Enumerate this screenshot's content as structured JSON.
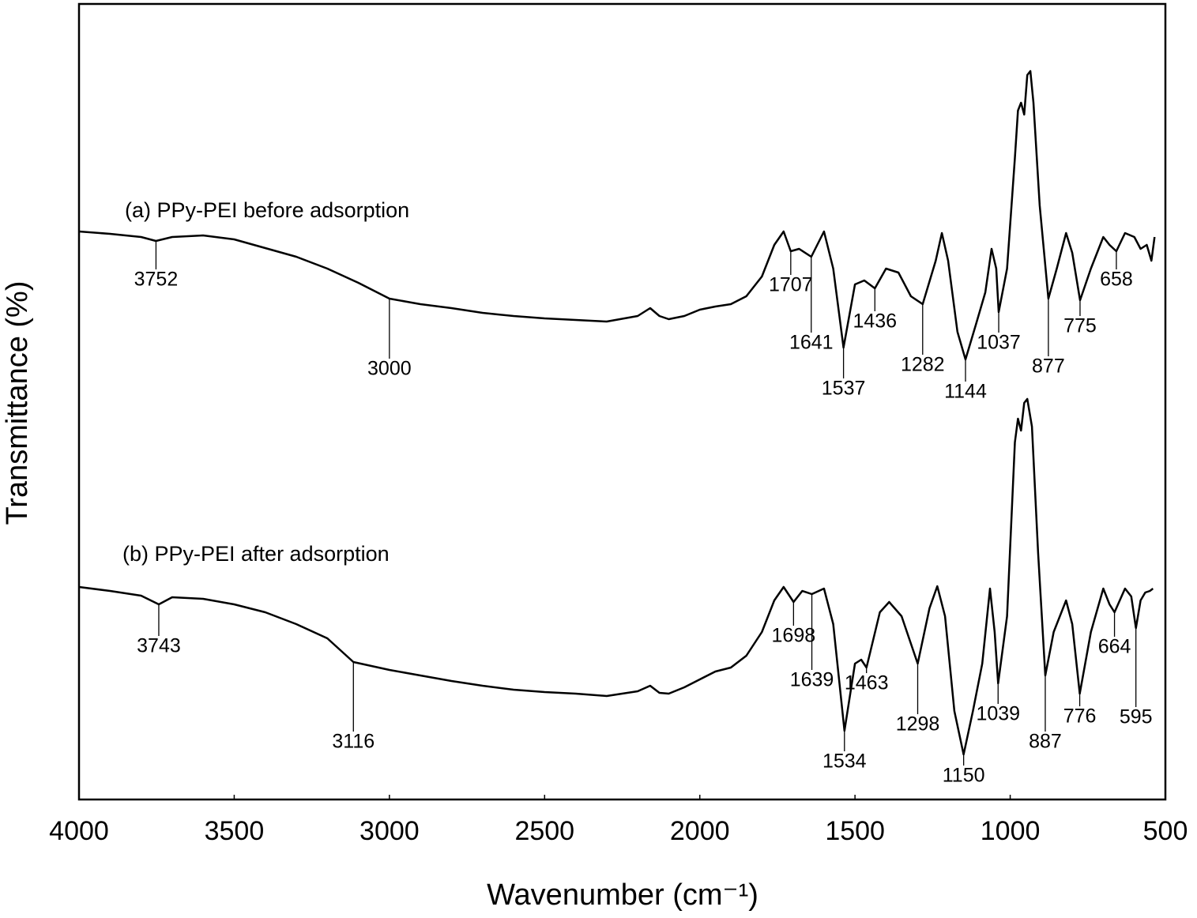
{
  "chart_data": {
    "type": "line",
    "x_label": "Wavenumber (cm⁻¹)",
    "y_label": "Transmittance (%)",
    "xlim": [
      4000,
      500
    ],
    "xticks": [
      4000,
      3500,
      3000,
      2500,
      2000,
      1500,
      1000,
      500
    ],
    "ylim": [
      0,
      1007
    ],
    "color": "#000000",
    "series": [
      {
        "name": "(a) PPy-PEI before adsorption",
        "x": [
          4000,
          3900,
          3800,
          3752,
          3700,
          3600,
          3500,
          3400,
          3300,
          3200,
          3100,
          3000,
          2900,
          2800,
          2700,
          2600,
          2500,
          2400,
          2300,
          2200,
          2160,
          2130,
          2100,
          2050,
          2000,
          1950,
          1900,
          1850,
          1800,
          1760,
          1730,
          1707,
          1680,
          1641,
          1600,
          1570,
          1537,
          1500,
          1470,
          1436,
          1400,
          1360,
          1320,
          1282,
          1240,
          1220,
          1200,
          1170,
          1144,
          1110,
          1080,
          1060,
          1045,
          1037,
          1010,
          985,
          975,
          965,
          955,
          945,
          935,
          925,
          905,
          877,
          850,
          820,
          800,
          775,
          740,
          700,
          680,
          658,
          630,
          600,
          580,
          560,
          545,
          535
        ],
        "values": [
          719,
          716,
          712,
          707,
          712,
          714,
          709,
          698,
          687,
          672,
          654,
          634,
          627,
          622,
          616,
          612,
          609,
          607,
          605,
          612,
          622,
          612,
          608,
          612,
          620,
          624,
          627,
          637,
          662,
          702,
          719,
          694,
          697,
          687,
          719,
          672,
          572,
          652,
          657,
          647,
          672,
          667,
          637,
          627,
          682,
          717,
          682,
          592,
          557,
          602,
          642,
          697,
          672,
          617,
          672,
          812,
          872,
          882,
          867,
          917,
          922,
          882,
          752,
          634,
          672,
          717,
          692,
          632,
          672,
          712,
          702,
          694,
          717,
          712,
          697,
          702,
          682,
          712
        ],
        "peaks": [
          3752,
          3000,
          1707,
          1641,
          1537,
          1436,
          1282,
          1144,
          1037,
          877,
          775,
          658
        ]
      },
      {
        "name": "(b) PPy-PEI after adsorption",
        "x": [
          4000,
          3900,
          3800,
          3743,
          3700,
          3600,
          3500,
          3400,
          3300,
          3200,
          3116,
          3000,
          2900,
          2800,
          2700,
          2600,
          2500,
          2400,
          2300,
          2200,
          2160,
          2130,
          2100,
          2050,
          2000,
          1950,
          1900,
          1850,
          1800,
          1760,
          1730,
          1698,
          1670,
          1639,
          1600,
          1570,
          1534,
          1500,
          1480,
          1463,
          1420,
          1390,
          1350,
          1298,
          1260,
          1235,
          1210,
          1180,
          1150,
          1120,
          1090,
          1065,
          1050,
          1039,
          1010,
          985,
          975,
          965,
          955,
          945,
          930,
          910,
          887,
          860,
          820,
          800,
          776,
          740,
          700,
          680,
          664,
          630,
          610,
          595,
          580,
          565,
          550,
          540
        ],
        "values": [
          269,
          264,
          258,
          247,
          256,
          254,
          247,
          237,
          222,
          204,
          174,
          164,
          157,
          150,
          144,
          139,
          136,
          134,
          131,
          137,
          144,
          135,
          134,
          142,
          152,
          162,
          167,
          182,
          212,
          252,
          269,
          250,
          264,
          260,
          267,
          222,
          87,
          172,
          177,
          167,
          237,
          250,
          232,
          172,
          242,
          270,
          232,
          112,
          57,
          112,
          172,
          267,
          212,
          147,
          232,
          452,
          482,
          467,
          502,
          507,
          472,
          312,
          157,
          212,
          252,
          222,
          134,
          212,
          267,
          247,
          237,
          267,
          257,
          217,
          252,
          262,
          264,
          267
        ],
        "peaks": [
          3743,
          3116,
          1698,
          1639,
          1534,
          1463,
          1298,
          1150,
          1039,
          887,
          776,
          664,
          595
        ]
      }
    ]
  }
}
